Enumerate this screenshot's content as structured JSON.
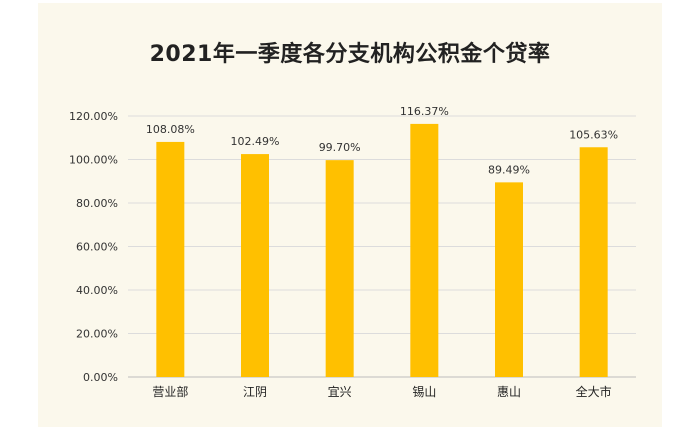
{
  "chart_data": {
    "type": "bar",
    "title": "2021年一季度各分支机构公积金个贷率",
    "categories": [
      "营业部",
      "江阴",
      "宜兴",
      "锡山",
      "惠山",
      "全大市"
    ],
    "values": [
      108.08,
      102.49,
      99.7,
      116.37,
      89.49,
      105.63
    ],
    "data_labels": [
      "108.08%",
      "102.49%",
      "99.70%",
      "116.37%",
      "89.49%",
      "105.63%"
    ],
    "ylim": [
      0,
      120
    ],
    "yticks": [
      0,
      20,
      40,
      60,
      80,
      100,
      120
    ],
    "ytick_labels": [
      "0.00%",
      "20.00%",
      "40.00%",
      "60.00%",
      "80.00%",
      "100.00%",
      "120.00%"
    ],
    "xlabel": "",
    "ylabel": "",
    "grid": true,
    "legend": "none",
    "colors": {
      "bar": "#ffc000",
      "background": "#fbf8ec"
    }
  }
}
